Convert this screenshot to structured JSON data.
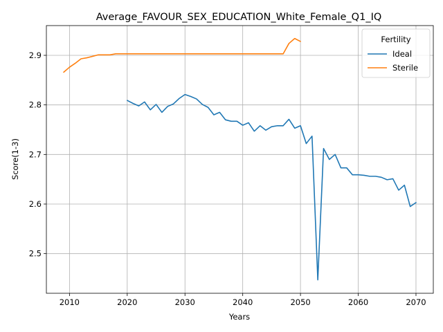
{
  "chart_data": {
    "type": "line",
    "title": "Average_FAVOUR_SEX_EDUCATION_White_Female_Q1_IQ",
    "xlabel": "Years",
    "ylabel": "Score(1-3)",
    "xlim": [
      2006,
      2073
    ],
    "ylim": [
      2.42,
      2.96
    ],
    "xticks": [
      2010,
      2020,
      2030,
      2040,
      2050,
      2060,
      2070
    ],
    "yticks": [
      2.5,
      2.6,
      2.7,
      2.8,
      2.9
    ],
    "xtick_labels": [
      "2010",
      "2020",
      "2030",
      "2040",
      "2050",
      "2060",
      "2070"
    ],
    "ytick_labels": [
      "2.5",
      "2.6",
      "2.7",
      "2.8",
      "2.9"
    ],
    "grid": true,
    "legend": {
      "title": "Fertility",
      "location": "upper right"
    },
    "series": [
      {
        "name": "Ideal",
        "color": "#1f77b4",
        "x": [
          2020,
          2021,
          2022,
          2023,
          2024,
          2025,
          2026,
          2027,
          2028,
          2029,
          2030,
          2031,
          2032,
          2033,
          2034,
          2035,
          2036,
          2037,
          2038,
          2039,
          2040,
          2041,
          2042,
          2043,
          2044,
          2045,
          2046,
          2047,
          2048,
          2049,
          2050,
          2051,
          2052,
          2053,
          2054,
          2055,
          2056,
          2057,
          2058,
          2059,
          2060,
          2061,
          2062,
          2063,
          2064,
          2065,
          2066,
          2067,
          2068,
          2069,
          2070
        ],
        "y": [
          2.809,
          2.803,
          2.798,
          2.806,
          2.79,
          2.801,
          2.785,
          2.797,
          2.802,
          2.813,
          2.821,
          2.817,
          2.812,
          2.801,
          2.795,
          2.78,
          2.785,
          2.77,
          2.767,
          2.767,
          2.759,
          2.764,
          2.747,
          2.758,
          2.749,
          2.756,
          2.758,
          2.758,
          2.771,
          2.753,
          2.758,
          2.722,
          2.737,
          2.447,
          2.712,
          2.69,
          2.7,
          2.673,
          2.673,
          2.659,
          2.659,
          2.658,
          2.656,
          2.656,
          2.654,
          2.649,
          2.651,
          2.628,
          2.638,
          2.595,
          2.603
        ]
      },
      {
        "name": "Sterile",
        "color": "#ff7f0e",
        "x": [
          2009,
          2010,
          2011,
          2012,
          2013,
          2014,
          2015,
          2016,
          2017,
          2018,
          2019,
          2020,
          2025,
          2030,
          2035,
          2040,
          2045,
          2046,
          2047,
          2048,
          2049,
          2050
        ],
        "y": [
          2.866,
          2.876,
          2.884,
          2.893,
          2.895,
          2.898,
          2.901,
          2.901,
          2.901,
          2.903,
          2.903,
          2.903,
          2.903,
          2.903,
          2.903,
          2.903,
          2.903,
          2.903,
          2.903,
          2.924,
          2.934,
          2.928
        ]
      }
    ]
  }
}
